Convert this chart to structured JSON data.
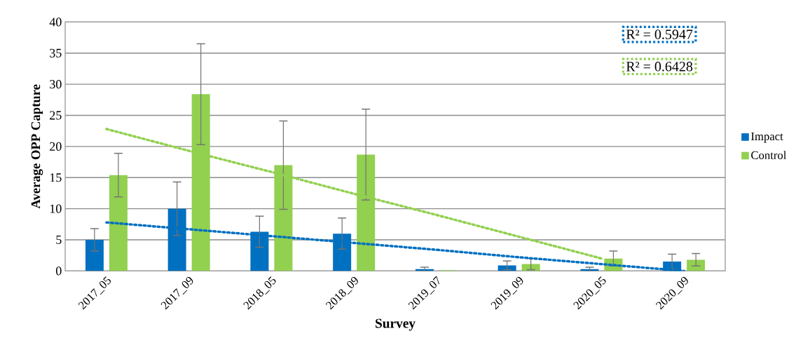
{
  "chart_data": {
    "type": "bar",
    "xlabel": "Survey",
    "ylabel": "Average OPP Capture",
    "categories": [
      "2017_05",
      "2017_09",
      "2018_05",
      "2018_09",
      "2019_07",
      "2019_09",
      "2020_05",
      "2020_09"
    ],
    "series": [
      {
        "name": "Impact",
        "color": "#0070c0",
        "values": [
          5.0,
          10.0,
          6.3,
          6.0,
          0.3,
          0.9,
          0.3,
          1.5
        ],
        "errors": [
          1.8,
          4.3,
          2.5,
          2.5,
          0.3,
          0.7,
          0.3,
          1.2
        ]
      },
      {
        "name": "Control",
        "color": "#92d050",
        "values": [
          15.4,
          28.4,
          17.0,
          18.7,
          0.1,
          1.1,
          2.0,
          1.8
        ],
        "errors": [
          3.5,
          8.1,
          7.1,
          7.3,
          null,
          0.9,
          1.2,
          1.0
        ]
      },
      {
        "type": "line",
        "color": "#0070c0",
        "line_style": "dotted",
        "values": [
          7.8,
          6.7,
          5.6,
          4.5,
          3.4,
          2.2,
          1.1,
          0.0
        ]
      },
      {
        "type": "line",
        "color": "#92d050",
        "line_style": "dotted",
        "values": [
          22.8,
          19.3,
          15.9,
          12.4,
          9.0,
          5.5,
          2.0,
          null
        ]
      }
    ],
    "annotations": [
      "R² = 0.5947",
      "R² = 0.6428"
    ],
    "ylim": [
      0,
      40
    ],
    "yticks": [
      0,
      5,
      10,
      15,
      20,
      25,
      30,
      35,
      40
    ],
    "grid": "y",
    "legend": "right"
  }
}
